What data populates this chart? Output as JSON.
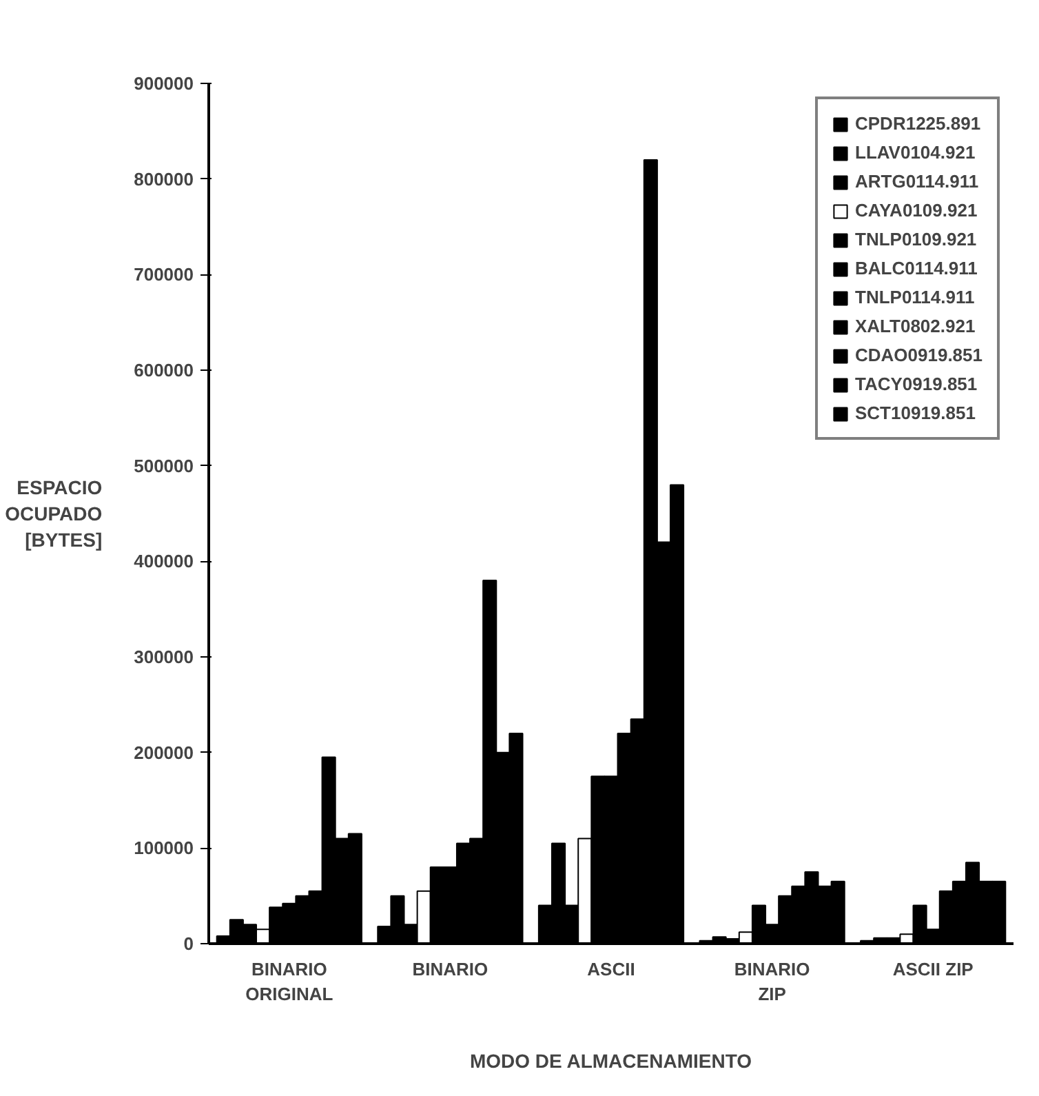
{
  "chart_data": {
    "type": "bar",
    "categories": [
      "BINARIO\nORIGINAL",
      "BINARIO",
      "ASCII",
      "BINARIO\nZIP",
      "ASCII ZIP"
    ],
    "xlabel": "MODO DE ALMACENAMIENTO",
    "ylabel": "ESPACIO\nOCUPADO\n[BYTES]",
    "ylim": [
      0,
      900000
    ],
    "yticks": [
      0,
      100000,
      200000,
      300000,
      400000,
      500000,
      600000,
      700000,
      800000,
      900000
    ],
    "grid": false,
    "legend": "top right",
    "series": [
      {
        "name": "CPDR1225.891",
        "color": "#000000",
        "values": [
          8000,
          18000,
          40000,
          3000,
          3000
        ]
      },
      {
        "name": "LLAV0104.921",
        "color": "#000000",
        "values": [
          25000,
          50000,
          105000,
          7000,
          6000
        ]
      },
      {
        "name": "ARTG0114.911",
        "color": "#000000",
        "values": [
          20000,
          20000,
          40000,
          5000,
          6000
        ]
      },
      {
        "name": "CAYA0109.921",
        "color": "#ffffff",
        "values": [
          15000,
          55000,
          110000,
          12000,
          10000
        ]
      },
      {
        "name": "TNLP0109.921",
        "color": "#000000",
        "values": [
          38000,
          80000,
          175000,
          40000,
          40000
        ]
      },
      {
        "name": "BALC0114.911",
        "color": "#000000",
        "values": [
          42000,
          80000,
          175000,
          20000,
          15000
        ]
      },
      {
        "name": "TNLP0114.911",
        "color": "#000000",
        "values": [
          50000,
          105000,
          220000,
          50000,
          55000
        ]
      },
      {
        "name": "XALT0802.921",
        "color": "#000000",
        "values": [
          55000,
          110000,
          235000,
          60000,
          65000
        ]
      },
      {
        "name": "CDAO0919.851",
        "color": "#000000",
        "values": [
          195000,
          380000,
          820000,
          75000,
          85000
        ]
      },
      {
        "name": "TACY0919.851",
        "color": "#000000",
        "values": [
          110000,
          200000,
          420000,
          60000,
          65000
        ]
      },
      {
        "name": "SCT10919.851",
        "color": "#000000",
        "values": [
          115000,
          220000,
          480000,
          65000,
          65000
        ]
      }
    ]
  }
}
